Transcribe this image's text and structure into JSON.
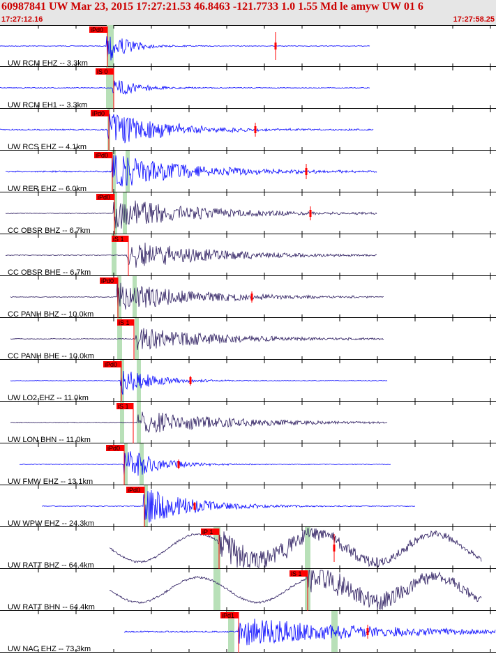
{
  "header": {
    "title": "60987841 UW Mar 23, 2015 17:27:21.53    46.8463 -121.7733   1.0 1.55 Md le amyw UW 01    6",
    "start_time": "17:27:12.16",
    "end_time": "17:27:58.25"
  },
  "colors": {
    "header_text": "#cc0000",
    "trace_blue": "#0000ff",
    "trace_navy": "#2a1a5e",
    "pick_flag": "#ff0000",
    "pick_window": "#b8e0b8",
    "grid": "#000000"
  },
  "traces": [
    {
      "label": "UW RCM EHZ -- 3.3km",
      "color": "blue",
      "start": 0,
      "end": 530,
      "onset": 153,
      "amp": 26,
      "decay": 30,
      "noise": 1,
      "picks": [
        {
          "x": 128,
          "w": 26,
          "text": "iPd0"
        }
      ],
      "windows": [
        153,
        163
      ],
      "coda": [
        {
          "x": 395,
          "h": 40
        }
      ]
    },
    {
      "label": "UW RCM EH1 -- 3.3km",
      "color": "blue",
      "start": 0,
      "end": 530,
      "onset": 162,
      "amp": 14,
      "decay": 40,
      "noise": 1,
      "picks": [
        {
          "x": 137,
          "w": 26,
          "text": "iS 0"
        }
      ],
      "windows": [
        152,
        163
      ],
      "coda": []
    },
    {
      "label": "UW RCS EHZ -- 4.1km",
      "color": "blue",
      "start": 0,
      "end": 535,
      "onset": 155,
      "amp": 28,
      "decay": 80,
      "noise": 2,
      "picks": [
        {
          "x": 130,
          "w": 26,
          "text": "iPd0"
        }
      ],
      "windows": [
        154,
        158
      ],
      "coda": [
        {
          "x": 366,
          "h": 20
        }
      ]
    },
    {
      "label": "UW RER EHZ -- 6.0km",
      "color": "blue",
      "start": 8,
      "end": 540,
      "onset": 160,
      "amp": 26,
      "decay": 110,
      "noise": 2,
      "picks": [
        {
          "x": 135,
          "w": 26,
          "text": "iPd0"
        }
      ],
      "windows": [
        160,
        166,
        180,
        186
      ],
      "coda": [
        {
          "x": 439,
          "h": 22
        }
      ]
    },
    {
      "label": "CC OBSR BHZ -- 6.7km",
      "color": "navy",
      "start": 8,
      "end": 540,
      "onset": 163,
      "amp": 24,
      "decay": 120,
      "noise": 1,
      "picks": [
        {
          "x": 138,
          "w": 26,
          "text": "iPd0"
        }
      ],
      "windows": [
        163,
        168,
        176,
        182
      ],
      "coda": [
        {
          "x": 445,
          "h": 20
        }
      ]
    },
    {
      "label": "CC OBSR BHE -- 6.7km",
      "color": "navy",
      "start": 8,
      "end": 540,
      "onset": 182,
      "amp": 22,
      "decay": 120,
      "noise": 1,
      "picks": [
        {
          "x": 160,
          "w": 24,
          "text": "iS 1"
        }
      ],
      "windows": [
        160,
        167
      ],
      "coda": []
    },
    {
      "label": "CC PANH BHZ -- 10.0km",
      "color": "navy",
      "start": 15,
      "end": 550,
      "onset": 168,
      "amp": 22,
      "decay": 120,
      "noise": 1,
      "picks": [
        {
          "x": 143,
          "w": 26,
          "text": "iPd0"
        }
      ],
      "windows": [
        168,
        174,
        190,
        196
      ],
      "coda": [
        {
          "x": 361,
          "h": 16
        }
      ]
    },
    {
      "label": "CC PANH BHE -- 10.0km",
      "color": "navy",
      "start": 15,
      "end": 550,
      "onset": 195,
      "amp": 18,
      "decay": 120,
      "noise": 1,
      "picks": [
        {
          "x": 168,
          "w": 24,
          "text": "iS 1"
        }
      ],
      "windows": [
        168,
        175,
        193,
        199
      ],
      "coda": []
    },
    {
      "label": "UW LO2 EHZ -- 11.0km",
      "color": "blue",
      "start": 15,
      "end": 555,
      "onset": 173,
      "amp": 22,
      "decay": 45,
      "noise": 1,
      "picks": [
        {
          "x": 148,
          "w": 26,
          "text": "iPd0"
        }
      ],
      "windows": [
        172,
        178,
        196,
        202
      ],
      "coda": [
        {
          "x": 273,
          "h": 14
        }
      ]
    },
    {
      "label": "UW LON BHN -- 11.0km",
      "color": "navy",
      "start": 15,
      "end": 555,
      "onset": 197,
      "amp": 18,
      "decay": 130,
      "noise": 1,
      "picks": [
        {
          "x": 167,
          "w": 24,
          "text": "iS 1"
        }
      ],
      "windows": [
        172,
        178,
        196,
        202
      ],
      "coda": []
    },
    {
      "label": "UW FMW EHZ -- 13.1km",
      "color": "blue",
      "start": 28,
      "end": 560,
      "onset": 178,
      "amp": 26,
      "decay": 45,
      "noise": 1,
      "picks": [
        {
          "x": 152,
          "w": 26,
          "text": "iPd0"
        }
      ],
      "windows": [
        178,
        183,
        200,
        206
      ],
      "coda": [
        {
          "x": 256,
          "h": 14
        }
      ]
    },
    {
      "label": "UW WPW EHZ -- 24.3km",
      "color": "blue",
      "start": 60,
      "end": 595,
      "onset": 206,
      "amp": 28,
      "decay": 70,
      "noise": 1,
      "picks": [
        {
          "x": 181,
          "w": 26,
          "text": "iPd0"
        }
      ],
      "windows": [
        206,
        212
      ],
      "coda": [
        {
          "x": 279,
          "h": 12
        }
      ]
    },
    {
      "label": "UW RATT BHZ -- 64.4km",
      "color": "navy",
      "start": 157,
      "end": 690,
      "onset": 313,
      "amp": 22,
      "decay": 200,
      "noise": 3,
      "picks": [
        {
          "x": 288,
          "w": 26,
          "text": "iP 1"
        }
      ],
      "windows": [
        306,
        316,
        437,
        445
      ],
      "coda": [
        {
          "x": 479,
          "h": 40
        }
      ],
      "swell": 20
    },
    {
      "label": "UW RATT BHN -- 64.4km",
      "color": "navy",
      "start": 157,
      "end": 690,
      "onset": 440,
      "amp": 22,
      "decay": 200,
      "noise": 3,
      "picks": [
        {
          "x": 415,
          "w": 26,
          "text": "iS 1"
        }
      ],
      "windows": [
        306,
        316,
        437,
        445
      ],
      "coda": [],
      "swell": 18
    },
    {
      "label": "UW NAC EHZ -- 73.3km",
      "color": "blue",
      "start": 178,
      "end": 710,
      "onset": 342,
      "amp": 22,
      "decay": 180,
      "noise": 2,
      "picks": [
        {
          "x": 316,
          "w": 26,
          "text": "iPd1"
        }
      ],
      "windows": [
        327,
        336,
        475,
        484
      ],
      "coda": [
        {
          "x": 527,
          "h": 20
        }
      ]
    }
  ]
}
